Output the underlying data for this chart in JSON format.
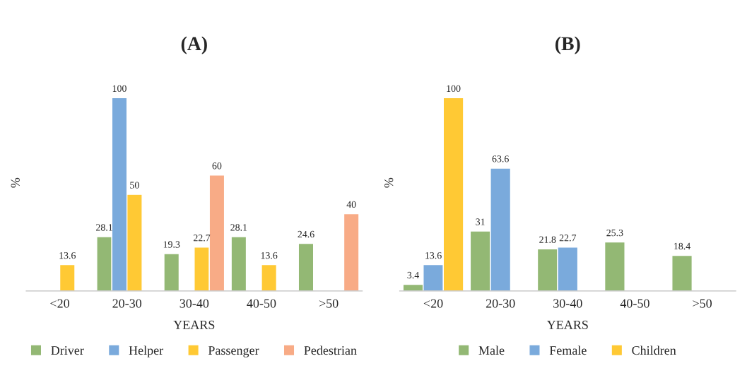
{
  "chart_data": [
    {
      "type": "bar",
      "title": "(A)",
      "xlabel": "YEARS",
      "ylabel": "%",
      "categories": [
        "<20",
        "20-30",
        "30-40",
        "40-50",
        ">50"
      ],
      "series": [
        {
          "name": "Driver",
          "color": "#93b874",
          "values": [
            null,
            28.1,
            19.3,
            28.1,
            24.6
          ]
        },
        {
          "name": "Helper",
          "color": "#7aaadc",
          "values": [
            null,
            100,
            null,
            null,
            null
          ]
        },
        {
          "name": "Passenger",
          "color": "#ffc934",
          "values": [
            13.6,
            50,
            22.7,
            13.6,
            null
          ]
        },
        {
          "name": "Pedestrian",
          "color": "#f8ab86",
          "values": [
            null,
            null,
            60,
            null,
            40
          ]
        }
      ],
      "data_labels": true,
      "legend": "bottom",
      "tick_labels": "x",
      "grid": false
    },
    {
      "type": "bar",
      "title": "(B)",
      "xlabel": "YEARS",
      "ylabel": "%",
      "categories": [
        "<20",
        "20-30",
        "30-40",
        "40-50",
        ">50"
      ],
      "series": [
        {
          "name": "Male",
          "color": "#93b874",
          "values": [
            3.4,
            31,
            21.8,
            25.3,
            18.4
          ]
        },
        {
          "name": "Female",
          "color": "#7aaadc",
          "values": [
            13.6,
            63.6,
            22.7,
            null,
            null
          ]
        },
        {
          "name": "Children",
          "color": "#ffc934",
          "values": [
            100,
            null,
            null,
            null,
            null
          ]
        }
      ],
      "data_labels": true,
      "legend": "bottom",
      "tick_labels": "x",
      "grid": false
    }
  ]
}
